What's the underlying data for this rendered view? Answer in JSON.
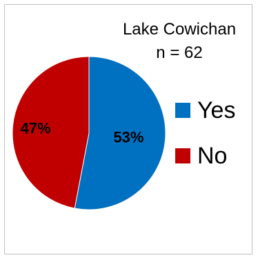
{
  "chart_data": {
    "type": "pie",
    "title": "Lake Cowichan",
    "subtitle": "n = 62",
    "categories": [
      "Yes",
      "No"
    ],
    "values": [
      53,
      47
    ],
    "data_labels": [
      "53%",
      "47%"
    ],
    "colors": [
      "#0070C0",
      "#C00000"
    ],
    "legend_position": "right"
  }
}
